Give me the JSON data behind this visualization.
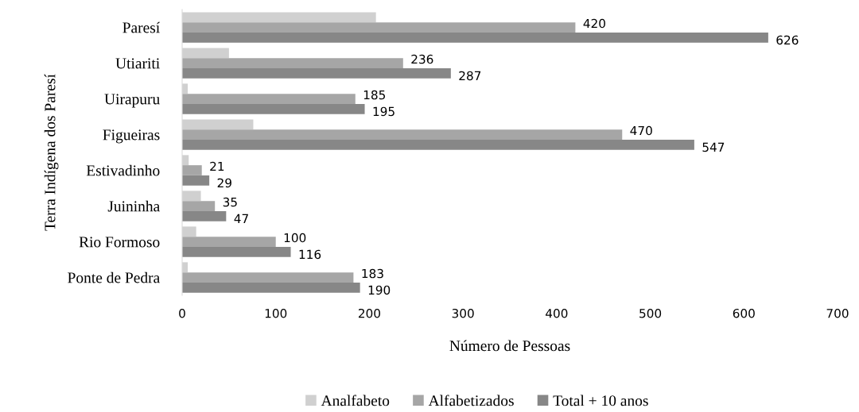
{
  "chart_data": {
    "type": "bar",
    "orientation": "horizontal",
    "xlabel": "Número de Pessoas",
    "ylabel": "Terra Indígena dos Paresí",
    "categories": [
      "Paresí",
      "Utiariti",
      "Uirapuru",
      "Figueiras",
      "Estivadinho",
      "Juininha",
      "Rio Formoso",
      "Ponte de Pedra"
    ],
    "series": [
      {
        "name": "Analfabeto",
        "color": "#d0d0d0",
        "values": [
          207,
          50,
          6,
          76,
          7,
          20,
          15,
          6
        ]
      },
      {
        "name": "Alfabetizados",
        "color": "#a6a6a6",
        "values": [
          420,
          236,
          185,
          470,
          21,
          35,
          100,
          183
        ],
        "value_labels": [
          "420",
          "236",
          "185",
          "470",
          "21",
          "35",
          "100",
          "183"
        ]
      },
      {
        "name": "Total + 10 anos",
        "color": "#878787",
        "values": [
          626,
          287,
          195,
          547,
          29,
          47,
          116,
          190
        ],
        "value_labels": [
          "626",
          "287",
          "195",
          "547",
          "29",
          "47",
          "116",
          "190"
        ]
      }
    ],
    "xlim": [
      0,
      700
    ],
    "xticks": [
      0,
      100,
      200,
      300,
      400,
      500,
      600,
      700
    ],
    "grid": false,
    "legend": "bottom"
  }
}
